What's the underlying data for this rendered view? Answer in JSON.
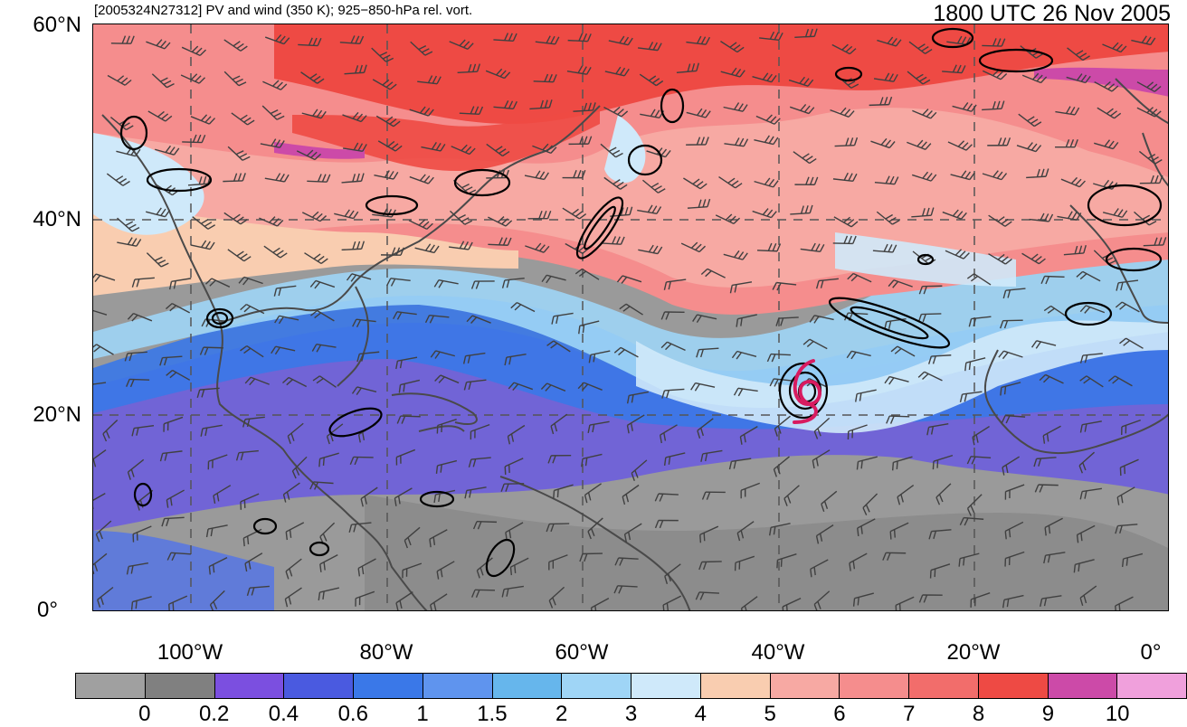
{
  "header": {
    "left_title": "[2005324N27312] PV and wind (350 K); 925−850-hPa rel. vort.",
    "right_title": "1800 UTC 26 Nov 2005"
  },
  "map": {
    "lat_labels": [
      "60°N",
      "40°N",
      "20°N",
      "0°"
    ],
    "lon_labels": [
      "100°W",
      "80°W",
      "60°W",
      "40°W",
      "20°W",
      "0°"
    ],
    "extent": {
      "lon_min": -110,
      "lon_max": 0,
      "lat_min": 0,
      "lat_max": 60
    },
    "storm_center": {
      "lon": -38,
      "lat": 23
    },
    "storm_marker_color": "#d81b60"
  },
  "colorbar": {
    "colors": [
      "#a0a0a0",
      "#808080",
      "#7b4fe0",
      "#4a5ae0",
      "#3a78e8",
      "#5f94ee",
      "#66b6ec",
      "#9fd5f6",
      "#cfe9fa",
      "#f9cdb0",
      "#f7a9a3",
      "#f58d8d",
      "#f26d6b",
      "#ee4a44",
      "#cc4aa8",
      "#f0a0dc"
    ],
    "labels": [
      "0",
      "0.2",
      "0.4",
      "0.6",
      "1",
      "1.5",
      "2",
      "3",
      "4",
      "5",
      "6",
      "7",
      "8",
      "9",
      "10"
    ]
  }
}
